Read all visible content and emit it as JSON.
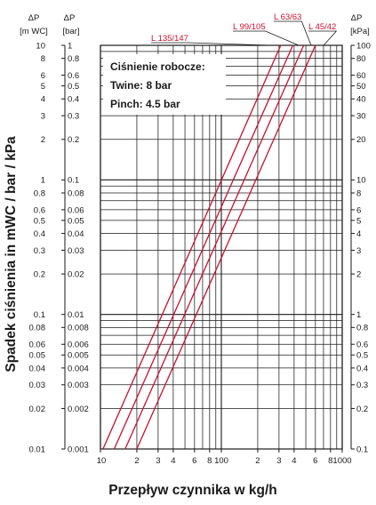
{
  "chart_data": {
    "type": "line",
    "log_x": true,
    "log_y": true,
    "xlim": [
      10,
      1000
    ],
    "ylim_mwc": [
      0.01,
      10
    ],
    "x_ticks": [
      10,
      20,
      30,
      40,
      60,
      80,
      100,
      200,
      300,
      400,
      600,
      800,
      1000
    ],
    "x_tick_labels": [
      "10",
      "2",
      "3",
      "4",
      "6",
      "8",
      "100",
      "2",
      "3",
      "4",
      "6",
      "8",
      "1000"
    ],
    "y_ticks_mwc": [
      0.01,
      0.02,
      0.03,
      0.04,
      0.05,
      0.06,
      0.08,
      0.1,
      0.2,
      0.3,
      0.4,
      0.5,
      0.6,
      0.8,
      1,
      2,
      3,
      4,
      5,
      6,
      8,
      10
    ],
    "y_labels_mwc": [
      "0.01",
      "0.02",
      "0.03",
      "0.04",
      "0.05",
      "0.06",
      "0.08",
      "0.1",
      "0.2",
      "0.3",
      "0.4",
      "0.5",
      "0.6",
      "0.8",
      "1",
      "2",
      "3",
      "4",
      "5",
      "6",
      "8",
      "10"
    ],
    "y_labels_bar": [
      "0.001",
      "0.002",
      "0.003",
      "0.004",
      "0.005",
      "0.006",
      "0.008",
      "0.01",
      "0.02",
      "0.03",
      "0.04",
      "0.05",
      "0.06",
      "0.08",
      "0.1",
      "0.2",
      "0.3",
      "0.4",
      "0.5",
      "0.6",
      "0.8",
      "1"
    ],
    "y_labels_kpa": [
      "0.1",
      "0.2",
      "0.3",
      "0.4",
      "0.5",
      "0.6",
      "0.8",
      "1",
      "2",
      "3",
      "4",
      "5",
      "6",
      "8",
      "10",
      "20",
      "30",
      "40",
      "50",
      "60",
      "80",
      "100"
    ],
    "header_mwc": [
      "ΔP",
      "[m WC]"
    ],
    "header_bar": [
      "ΔP",
      "[bar]"
    ],
    "header_kpa": [
      "ΔP",
      "[kPa]"
    ],
    "ylabel": "Spadek ciśnienia in mWC / bar / kPa",
    "xlabel": "Przepływ czynnika w kg/h",
    "series": [
      {
        "name": "L 135/147",
        "x": [
          10.5,
          310
        ],
        "y": [
          0.01,
          10
        ]
      },
      {
        "name": "L 99/105",
        "x": [
          13,
          390
        ],
        "y": [
          0.01,
          10
        ]
      },
      {
        "name": "L 63/63",
        "x": [
          16,
          480
        ],
        "y": [
          0.01,
          10
        ]
      },
      {
        "name": "L 45/42",
        "x": [
          20,
          600
        ],
        "y": [
          0.01,
          10
        ]
      }
    ],
    "line_color": "#c8102e",
    "grid": true
  },
  "note": {
    "line1": "Ciśnienie robocze:",
    "line2": "Twine: 8 bar",
    "line3": "Pinch: 4.5 bar"
  }
}
